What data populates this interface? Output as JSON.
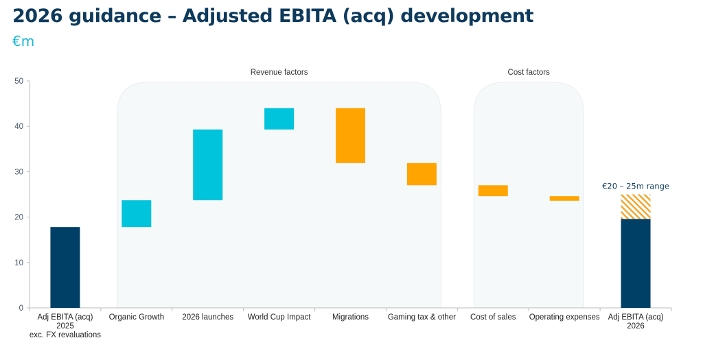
{
  "header": {
    "title": "2026 guidance – Adjusted EBITA (acq) development",
    "unit": "€m"
  },
  "chart_data": {
    "type": "waterfall",
    "ylim": [
      0,
      50
    ],
    "yticks": [
      0,
      10,
      20,
      30,
      40,
      50
    ],
    "grid": false,
    "categories": [
      "Adj EBITA (acq)\n2025\nexc. FX revaluations",
      "Organic Growth",
      "2026 launches",
      "World Cup Impact",
      "Migrations",
      "Gaming tax & other",
      "Cost of sales",
      "Operating expenses",
      "Adj EBITA (acq)\n2026"
    ],
    "bars": [
      {
        "from": 0,
        "to": 17.8,
        "kind": "total"
      },
      {
        "from": 17.8,
        "to": 23.7,
        "kind": "increase"
      },
      {
        "from": 23.7,
        "to": 39.3,
        "kind": "increase"
      },
      {
        "from": 39.3,
        "to": 44.0,
        "kind": "increase"
      },
      {
        "from": 44.0,
        "to": 31.9,
        "kind": "decrease"
      },
      {
        "from": 31.9,
        "to": 27.0,
        "kind": "decrease"
      },
      {
        "from": 27.0,
        "to": 24.6,
        "kind": "decrease"
      },
      {
        "from": 24.6,
        "to": 23.6,
        "kind": "decrease"
      },
      {
        "from": 0,
        "to": 19.6,
        "kind": "total",
        "range": [
          19.6,
          25
        ]
      }
    ],
    "groups": [
      {
        "label": "Revenue factors",
        "first": 1,
        "last": 5
      },
      {
        "label": "Cost factors",
        "first": 6,
        "last": 7
      }
    ],
    "annotation": "€20 – 25m range",
    "colors": {
      "total": "#003f66",
      "increase": "#00c3dc",
      "decrease": "#ffa400",
      "range": "#f0a830",
      "panel": "#f6f9fa"
    }
  }
}
